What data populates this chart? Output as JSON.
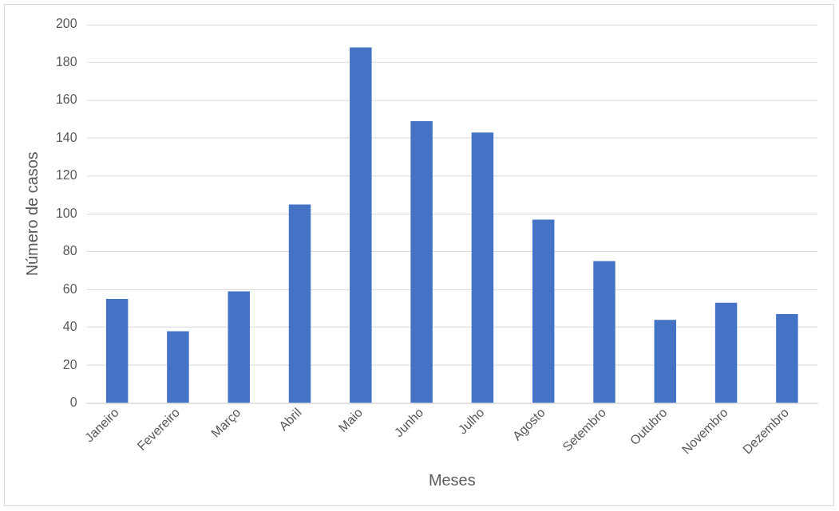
{
  "chart_data": {
    "type": "bar",
    "xlabel": "Meses",
    "ylabel": "Número de casos",
    "categories": [
      "Janeiro",
      "Fevereiro",
      "Março",
      "Abril",
      "Maio",
      "Junho",
      "Julho",
      "Agosto",
      "Setembro",
      "Outubro",
      "Novembro",
      "Dezembro"
    ],
    "values": [
      55,
      38,
      59,
      105,
      188,
      149,
      143,
      97,
      75,
      44,
      53,
      47
    ],
    "color": "#4472c4",
    "ylim": [
      0,
      200
    ],
    "yticks": [
      0,
      20,
      40,
      60,
      80,
      100,
      120,
      140,
      160,
      180,
      200
    ],
    "grid": "y",
    "legend": false
  }
}
